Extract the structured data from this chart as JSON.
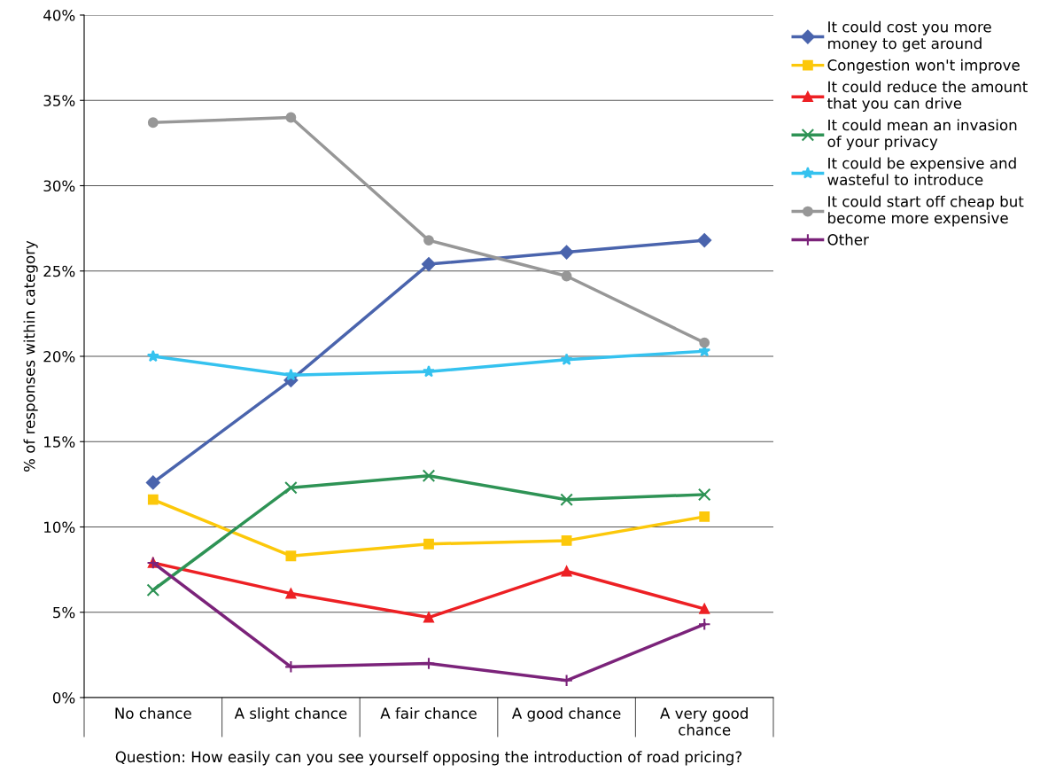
{
  "chart_data": {
    "type": "line",
    "xlabel": "Question: How easily can you see yourself opposing the introduction of road pricing?",
    "ylabel": "% of responses within category",
    "categories": [
      "No chance",
      "A slight chance",
      "A fair chance",
      "A good chance",
      "A very good\nchance"
    ],
    "ylim": [
      0,
      40
    ],
    "yticks": [
      {
        "value": 0,
        "label": "0%"
      },
      {
        "value": 5,
        "label": "5%"
      },
      {
        "value": 10,
        "label": "10%"
      },
      {
        "value": 15,
        "label": "15%"
      },
      {
        "value": 20,
        "label": "20%"
      },
      {
        "value": 25,
        "label": "25%"
      },
      {
        "value": 30,
        "label": "30%"
      },
      {
        "value": 35,
        "label": "35%"
      },
      {
        "value": 40,
        "label": "40%"
      }
    ],
    "grid": "y",
    "legend": "right",
    "series": [
      {
        "name": "It could cost you more\nmoney to get around",
        "color": "#4a64ad",
        "marker": "diamond",
        "values": [
          12.6,
          18.6,
          25.4,
          26.1,
          26.8
        ]
      },
      {
        "name": "Congestion won't improve",
        "color": "#fcc80a",
        "marker": "square",
        "values": [
          11.6,
          8.3,
          9.0,
          9.2,
          10.6
        ]
      },
      {
        "name": "It could reduce the amount\nthat you can drive",
        "color": "#ed2024",
        "marker": "triangle",
        "values": [
          7.9,
          6.1,
          4.7,
          7.4,
          5.2
        ]
      },
      {
        "name": "It could mean an invasion\nof your privacy",
        "color": "#2e9355",
        "marker": "cross",
        "values": [
          6.3,
          12.3,
          13.0,
          11.6,
          11.9
        ]
      },
      {
        "name": "It could be expensive and\nwasteful to introduce",
        "color": "#35c2ef",
        "marker": "star",
        "values": [
          20.0,
          18.9,
          19.1,
          19.8,
          20.3
        ]
      },
      {
        "name": "It could start off cheap but\nbecome more expensive",
        "color": "#979797",
        "marker": "circle",
        "values": [
          33.7,
          34.0,
          26.8,
          24.7,
          20.8
        ]
      },
      {
        "name": "Other",
        "color": "#7b237a",
        "marker": "plus",
        "values": [
          7.9,
          1.8,
          2.0,
          1.0,
          4.3
        ]
      }
    ]
  }
}
